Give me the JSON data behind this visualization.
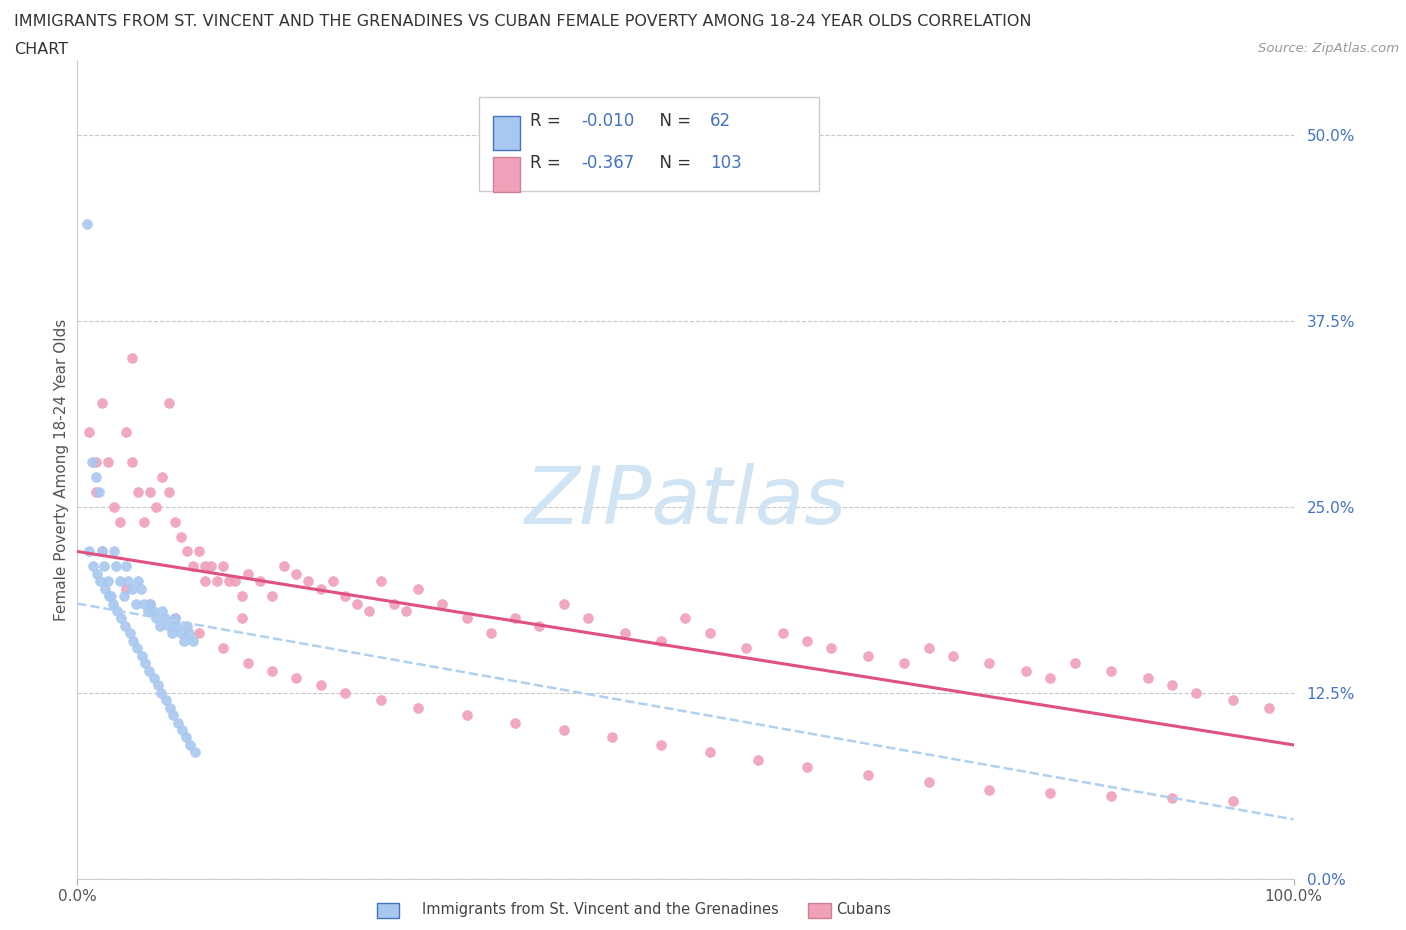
{
  "title_line1": "IMMIGRANTS FROM ST. VINCENT AND THE GRENADINES VS CUBAN FEMALE POVERTY AMONG 18-24 YEAR OLDS CORRELATION",
  "title_line2": "CHART",
  "source_text": "Source: ZipAtlas.com",
  "ylabel": "Female Poverty Among 18-24 Year Olds",
  "xmin": 0.0,
  "xmax": 1.0,
  "ymin": 0.0,
  "ymax": 0.55,
  "xtick_positions": [
    0.0,
    1.0
  ],
  "xtick_labels": [
    "0.0%",
    "100.0%"
  ],
  "ytick_values": [
    0.0,
    0.125,
    0.25,
    0.375,
    0.5
  ],
  "ytick_labels": [
    "0.0%",
    "12.5%",
    "25.0%",
    "37.5%",
    "50.0%"
  ],
  "color_blue": "#A8C8F0",
  "color_pink": "#F0A0B8",
  "color_blue_dark": "#4472C4",
  "color_pink_line": "#E05080",
  "color_blue_line": "#B0D0F0",
  "watermark_color": "#D0E4F4",
  "legend_r1": "R = -0.010",
  "legend_n1": "N =  62",
  "legend_r2": "R = -0.367",
  "legend_n2": "N = 103",
  "blue_x": [
    0.008,
    0.012,
    0.015,
    0.018,
    0.02,
    0.022,
    0.025,
    0.028,
    0.03,
    0.032,
    0.035,
    0.038,
    0.04,
    0.042,
    0.045,
    0.048,
    0.05,
    0.052,
    0.055,
    0.058,
    0.06,
    0.062,
    0.065,
    0.068,
    0.07,
    0.072,
    0.075,
    0.078,
    0.08,
    0.082,
    0.085,
    0.088,
    0.09,
    0.092,
    0.095,
    0.01,
    0.013,
    0.016,
    0.019,
    0.023,
    0.026,
    0.029,
    0.033,
    0.036,
    0.039,
    0.043,
    0.046,
    0.049,
    0.053,
    0.056,
    0.059,
    0.063,
    0.066,
    0.069,
    0.073,
    0.076,
    0.079,
    0.083,
    0.086,
    0.089,
    0.093,
    0.097
  ],
  "blue_y": [
    0.44,
    0.28,
    0.27,
    0.26,
    0.22,
    0.21,
    0.2,
    0.19,
    0.22,
    0.21,
    0.2,
    0.19,
    0.21,
    0.2,
    0.195,
    0.185,
    0.2,
    0.195,
    0.185,
    0.18,
    0.185,
    0.18,
    0.175,
    0.17,
    0.18,
    0.175,
    0.17,
    0.165,
    0.175,
    0.17,
    0.165,
    0.16,
    0.17,
    0.165,
    0.16,
    0.22,
    0.21,
    0.205,
    0.2,
    0.195,
    0.19,
    0.185,
    0.18,
    0.175,
    0.17,
    0.165,
    0.16,
    0.155,
    0.15,
    0.145,
    0.14,
    0.135,
    0.13,
    0.125,
    0.12,
    0.115,
    0.11,
    0.105,
    0.1,
    0.095,
    0.09,
    0.085
  ],
  "pink_x": [
    0.01,
    0.015,
    0.02,
    0.025,
    0.03,
    0.035,
    0.04,
    0.045,
    0.05,
    0.055,
    0.06,
    0.065,
    0.07,
    0.075,
    0.08,
    0.085,
    0.09,
    0.095,
    0.1,
    0.105,
    0.11,
    0.115,
    0.12,
    0.125,
    0.13,
    0.135,
    0.14,
    0.15,
    0.16,
    0.17,
    0.18,
    0.19,
    0.2,
    0.21,
    0.22,
    0.23,
    0.24,
    0.25,
    0.26,
    0.27,
    0.28,
    0.3,
    0.32,
    0.34,
    0.36,
    0.38,
    0.4,
    0.42,
    0.45,
    0.48,
    0.5,
    0.52,
    0.55,
    0.58,
    0.6,
    0.62,
    0.65,
    0.68,
    0.7,
    0.72,
    0.75,
    0.78,
    0.8,
    0.82,
    0.85,
    0.88,
    0.9,
    0.92,
    0.95,
    0.98,
    0.02,
    0.04,
    0.06,
    0.08,
    0.1,
    0.12,
    0.14,
    0.16,
    0.18,
    0.2,
    0.22,
    0.25,
    0.28,
    0.32,
    0.36,
    0.4,
    0.44,
    0.48,
    0.52,
    0.56,
    0.6,
    0.65,
    0.7,
    0.75,
    0.8,
    0.85,
    0.9,
    0.95,
    0.015,
    0.045,
    0.075,
    0.105,
    0.135
  ],
  "pink_y": [
    0.3,
    0.26,
    0.32,
    0.28,
    0.25,
    0.24,
    0.3,
    0.28,
    0.26,
    0.24,
    0.26,
    0.25,
    0.27,
    0.26,
    0.24,
    0.23,
    0.22,
    0.21,
    0.22,
    0.21,
    0.21,
    0.2,
    0.21,
    0.2,
    0.2,
    0.19,
    0.205,
    0.2,
    0.19,
    0.21,
    0.205,
    0.2,
    0.195,
    0.2,
    0.19,
    0.185,
    0.18,
    0.2,
    0.185,
    0.18,
    0.195,
    0.185,
    0.175,
    0.165,
    0.175,
    0.17,
    0.185,
    0.175,
    0.165,
    0.16,
    0.175,
    0.165,
    0.155,
    0.165,
    0.16,
    0.155,
    0.15,
    0.145,
    0.155,
    0.15,
    0.145,
    0.14,
    0.135,
    0.145,
    0.14,
    0.135,
    0.13,
    0.125,
    0.12,
    0.115,
    0.22,
    0.195,
    0.185,
    0.175,
    0.165,
    0.155,
    0.145,
    0.14,
    0.135,
    0.13,
    0.125,
    0.12,
    0.115,
    0.11,
    0.105,
    0.1,
    0.095,
    0.09,
    0.085,
    0.08,
    0.075,
    0.07,
    0.065,
    0.06,
    0.058,
    0.056,
    0.054,
    0.052,
    0.28,
    0.35,
    0.32,
    0.2,
    0.175
  ],
  "blue_trend_x": [
    0.0,
    1.0
  ],
  "blue_trend_y": [
    0.185,
    0.04
  ],
  "pink_trend_x": [
    0.0,
    1.0
  ],
  "pink_trend_y": [
    0.22,
    0.09
  ]
}
